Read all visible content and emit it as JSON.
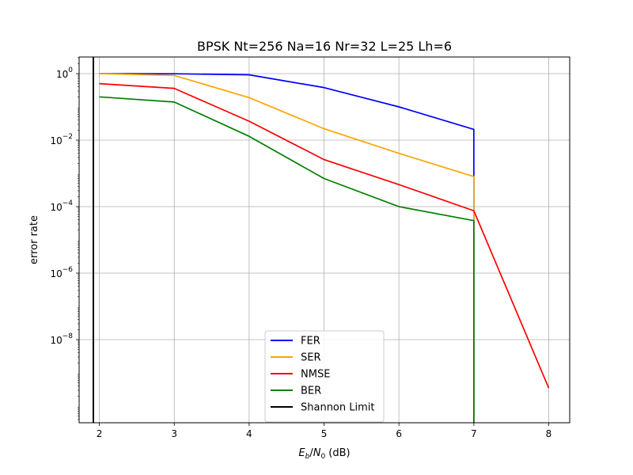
{
  "chart_data": {
    "type": "line",
    "title": "BPSK Nt=256 Na=16 Nr=32 L=25 Lh=6",
    "xlabel": "E_b/N_0 (dB)",
    "xlabel_parts": {
      "E": "E",
      "b": "b",
      "slash": "/",
      "N": "N",
      "zero": "0",
      "unit": " (dB)"
    },
    "ylabel": "error rate",
    "xscale": "linear",
    "yscale": "log",
    "xlim": [
      1.73,
      8.28
    ],
    "ylim_log10": [
      -10.5,
      0.5
    ],
    "grid": true,
    "legend_position": "lower-center",
    "x_ticks": [
      "2",
      "3",
      "4",
      "5",
      "6",
      "7",
      "8"
    ],
    "y_ticks": [
      {
        "exp": 0,
        "base": "10",
        "sup": "0"
      },
      {
        "exp": -2,
        "base": "10",
        "sup": "−2"
      },
      {
        "exp": -4,
        "base": "10",
        "sup": "−4"
      },
      {
        "exp": -6,
        "base": "10",
        "sup": "−6"
      },
      {
        "exp": -8,
        "base": "10",
        "sup": "−8"
      }
    ],
    "series": [
      {
        "name": "FER",
        "color": "#0000ff",
        "x": [
          2,
          3,
          4,
          5,
          6,
          7,
          7
        ],
        "y": [
          1.0,
          0.99,
          0.92,
          0.38,
          0.1,
          0.021,
          1e-11
        ]
      },
      {
        "name": "SER",
        "color": "#ffa500",
        "x": [
          2,
          3,
          4,
          5,
          6,
          7,
          7
        ],
        "y": [
          1.0,
          0.88,
          0.19,
          0.022,
          0.004,
          0.0008,
          1e-11
        ]
      },
      {
        "name": "NMSE",
        "color": "#ff0000",
        "x": [
          2,
          3,
          4,
          5,
          6,
          7,
          8
        ],
        "y": [
          0.5,
          0.36,
          0.037,
          0.0026,
          0.00046,
          7.5e-05,
          3.5e-10
        ]
      },
      {
        "name": "BER",
        "color": "#008000",
        "x": [
          2,
          3,
          4,
          5,
          6,
          7,
          7
        ],
        "y": [
          0.2,
          0.14,
          0.013,
          0.0007,
          0.0001,
          3.8e-05,
          1e-11
        ]
      }
    ],
    "vlines": [
      {
        "name": "Shannon Limit",
        "color": "#000000",
        "x": 1.92
      }
    ]
  }
}
